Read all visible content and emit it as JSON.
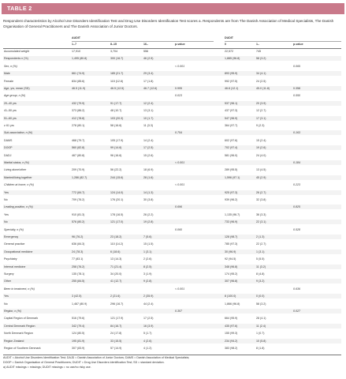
{
  "table": {
    "label": "TABLE 2",
    "caption": "Respondent characteristics by Alcohol Use Disorders Identification Test and Drug Use Disorders Identification Test scores a. Respondents are from The Danish Association of Medical Specialists, The Danish Organisation of General Practitioners and The Danish Association of Junior Doctors.",
    "group_headers": [
      "AUDIT",
      "DUDIT"
    ],
    "column_headers": [
      "",
      "1–7",
      "8–15",
      "16–",
      "p-value",
      "0",
      "1–",
      "p-value"
    ],
    "rows": [
      {
        "type": "data",
        "label": "Accumulated weight",
        "cells": [
          "17,910",
          "3,704",
          "556",
          "",
          "22,572",
          "745",
          ""
        ]
      },
      {
        "type": "data",
        "label": "Respondents n (%)",
        "cells": [
          "1,495 (80.8)",
          "300 (16.7)",
          "46 (2.5)",
          "",
          "1,885 (96.8)",
          "58 (3.2)",
          ""
        ]
      },
      {
        "type": "section",
        "label": "Sex, n (%)",
        "cells": [
          "",
          "",
          "",
          "< 0.001",
          "",
          "",
          "0.065"
        ]
      },
      {
        "type": "data",
        "label": "Male",
        "cells": [
          "661 (74.9)",
          "185 (21.7)",
          "29 (3.4)",
          "",
          "893 (95.9)",
          "34 (4.1)",
          ""
        ]
      },
      {
        "type": "data",
        "label": "Female",
        "cells": [
          "834 (85.6)",
          "115 (12.8)",
          "17 (1.8)",
          "",
          "992 (97.5)",
          "24 (2.5)",
          ""
        ]
      },
      {
        "type": "data",
        "label": "Age, yrs, mean (SD)",
        "cells": [
          "46.5 (11.9)",
          "46.5 (12.5)",
          "46.7 (12.6)",
          "0.995",
          "46.6 (12.1)",
          "45.0 (11.8)",
          "0.358"
        ]
      },
      {
        "type": "section",
        "label": "Age group, n (%)",
        "cells": [
          "",
          "",
          "",
          "0.023",
          "",
          "",
          "0.550"
        ]
      },
      {
        "type": "data",
        "label": "20–40 yrs",
        "cells": [
          "432 (79.9)",
          "91 (17.7)",
          "12 (2.4)",
          "",
          "537 (96.1)",
          "20 (3.9)",
          ""
        ]
      },
      {
        "type": "data",
        "label": "41–50 yrs",
        "cells": [
          "373 (86.2)",
          "48 (10.7)",
          "13 (3.1)",
          "",
          "437 (97.3)",
          "12 (2.7)",
          ""
        ]
      },
      {
        "type": "data",
        "label": "51–60 yrs",
        "cells": [
          "412 (78.8)",
          "103 (20.3)",
          "10 (1.7)",
          "",
          "547 (96.9)",
          "17 (3.1)",
          ""
        ]
      },
      {
        "type": "data",
        "label": "≥ 61 yrs",
        "cells": [
          "278 (80.1)",
          "58 (16.6)",
          "11 (3.3)",
          "",
          "364 (97.7)",
          "9 (2.3)",
          ""
        ]
      },
      {
        "type": "section",
        "label": "Sub-association, n (%)",
        "cells": [
          "",
          "",
          "",
          "0.754",
          "",
          "",
          "0.163"
        ]
      },
      {
        "type": "data",
        "label": "DAMS",
        "cells": [
          "468 (79.7)",
          "105 (17.9)",
          "14 (2.4)",
          "",
          "602 (97.6)",
          "15 (2.4)",
          ""
        ]
      },
      {
        "type": "data",
        "label": "DOGP",
        "cells": [
          "560 (82.8)",
          "99 (14.6)",
          "17 (2.5)",
          "",
          "702 (97.4)",
          "19 (2.6)",
          ""
        ]
      },
      {
        "type": "data",
        "label": "DADJ",
        "cells": [
          "467 (80.8)",
          "96 (16.6)",
          "15 (2.6)",
          "",
          "581 (96.0)",
          "24 (4.0)",
          ""
        ]
      },
      {
        "type": "section",
        "label": "Marital status, n (%)",
        "cells": [
          "",
          "",
          "",
          "< 0.001",
          "",
          "",
          "0.184"
        ]
      },
      {
        "type": "data",
        "label": "Living alone/other",
        "cells": [
          "209 (70.9)",
          "56 (22.2)",
          "18 (6.9)",
          "",
          "289 (95.5)",
          "13 (4.5)",
          ""
        ]
      },
      {
        "type": "data",
        "label": "Married/living together",
        "cells": [
          "1,286 (82.7)",
          "244 (15.6)",
          "28 (1.6)",
          "",
          "1,596 (97.1)",
          "45 (2.9)",
          ""
        ]
      },
      {
        "type": "section",
        "label": "Children at home, n (%)",
        "cells": [
          "",
          "",
          "",
          "< 0.001",
          "",
          "",
          "0.223"
        ]
      },
      {
        "type": "data",
        "label": "Yes",
        "cells": [
          "772 (84.7)",
          "124 (14.0)",
          "14 (1.3)",
          "",
          "925 (97.3)",
          "26 (2.7)",
          ""
        ]
      },
      {
        "type": "data",
        "label": "No",
        "cells": [
          "709 (76.2)",
          "176 (20.1)",
          "30 (3.8)",
          "",
          "939 (96.2)",
          "32 (3.8)",
          ""
        ]
      },
      {
        "type": "section",
        "label": "Leading position, n (%)",
        "cells": [
          "",
          "",
          "",
          "0.696",
          "",
          "",
          "0.825"
        ]
      },
      {
        "type": "data",
        "label": "Yes",
        "cells": [
          "910 (81.3)",
          "178 (16.5)",
          "26 (2.2)",
          "",
          "1,135 (96.7)",
          "36 (3.3)",
          ""
        ]
      },
      {
        "type": "data",
        "label": "No",
        "cells": [
          "576 (80.2)",
          "121 (17.0)",
          "19 (2.8)",
          "",
          "733 (96.9)",
          "22 (3.1)",
          ""
        ]
      },
      {
        "type": "section",
        "label": "Specialty, n (%)",
        "cells": [
          "",
          "",
          "",
          "0.060",
          "",
          "",
          "0.528"
        ]
      },
      {
        "type": "data",
        "label": "Emergency",
        "cells": [
          "96 (76.2)",
          "23 (18.2)",
          "7 (5.6)",
          "",
          "128 (98.7)",
          "2 (1.3)",
          ""
        ]
      },
      {
        "type": "data",
        "label": "General practice",
        "cells": [
          "636 (84.3)",
          "110 (14.2)",
          "15 (1.5)",
          "",
          "785 (97.3)",
          "22 (2.7)",
          ""
        ]
      },
      {
        "type": "data",
        "label": "Occupational medicine",
        "cells": [
          "24 (78.3)",
          "6 (18.6)",
          "1 (3.1)",
          "",
          "30 (96.9)",
          "1 (3.1)",
          ""
        ]
      },
      {
        "type": "data",
        "label": "Psychiatry",
        "cells": [
          "77 (83.1)",
          "13 (14.3)",
          "2 (2.6)",
          "",
          "92 (94.5)",
          "5 (5.5)",
          ""
        ]
      },
      {
        "type": "data",
        "label": "Internal medicine",
        "cells": [
          "258 (76.2)",
          "71 (21.4)",
          "8 (2.5)",
          "",
          "348 (96.8)",
          "11 (3.2)",
          ""
        ]
      },
      {
        "type": "data",
        "label": "Surgery",
        "cells": [
          "135 (78.1)",
          "34 (20.0)",
          "3 (1.9)",
          "",
          "174 (95.2)",
          "8 (4.8)",
          ""
        ]
      },
      {
        "type": "data",
        "label": "Other",
        "cells": [
          "255 (84.5)",
          "41 (12.7)",
          "9 (2.8)",
          "",
          "307 (96.8)",
          "9 (3.2)",
          ""
        ]
      },
      {
        "type": "section",
        "label": "Been in treatment, n (%)",
        "cells": [
          "",
          "",
          "",
          "< 0.001",
          "",
          "",
          "0.636"
        ]
      },
      {
        "type": "data",
        "label": "Yes",
        "cells": [
          "3 (42.5)",
          "2 (21.6)",
          "2 (35.9)",
          "",
          "8 (100.0)",
          "0 (0.0)",
          ""
        ]
      },
      {
        "type": "data",
        "label": "No",
        "cells": [
          "1,467 (80.9)",
          "296 (16.7)",
          "44 (2.4)",
          "",
          "1,866 (96.8)",
          "58 (3.2)",
          ""
        ]
      },
      {
        "type": "section",
        "label": "Region, n (%)",
        "cells": [
          "",
          "",
          "",
          "0.307",
          "",
          "",
          "0.027"
        ]
      },
      {
        "type": "data",
        "label": "Capital Region of Denmark",
        "cells": [
          "516 (79.6)",
          "121 (17.9)",
          "17 (2.5)",
          "",
          "664 (95.9)",
          "28 (4.1)",
          ""
        ]
      },
      {
        "type": "data",
        "label": "Central Denmark Region",
        "cells": [
          "342 (79.4)",
          "84 (16.7)",
          "16 (3.9)",
          "",
          "435 (97.6)",
          "11 (2.4)",
          ""
        ]
      },
      {
        "type": "data",
        "label": "North Denmark Region",
        "cells": [
          "124 (80.5)",
          "24 (17.8)",
          "5 (1.7)",
          "",
          "155 (99.3)",
          "1 (0.7)",
          ""
        ]
      },
      {
        "type": "data",
        "label": "Region Zealand",
        "cells": [
          "195 (81.9)",
          "33 (15.5)",
          "4 (2.6)",
          "",
          "234 (94.2)",
          "10 (5.8)",
          ""
        ]
      },
      {
        "type": "data",
        "label": "Region of Southern Denmark",
        "cells": [
          "307 (83.9)",
          "57 (14.9)",
          "4 (1.2)",
          "",
          "383 (98.2)",
          "8 (1.8)",
          ""
        ]
      }
    ],
    "footnotes": [
      "AUDIT = Alcohol Use Disorders Identification Test; DAJD = Danish Association of Junior Doctors; DAMS = Danish Association of Medical Specialists;",
      "DOGP = Danish Organisation of General Practitioners; DUDIT = Drug Use Disorders Identification Test; SD = standard deviation.",
      "a) AUDIT missings = missings; DUDIT missings = no use/no risky use."
    ]
  }
}
